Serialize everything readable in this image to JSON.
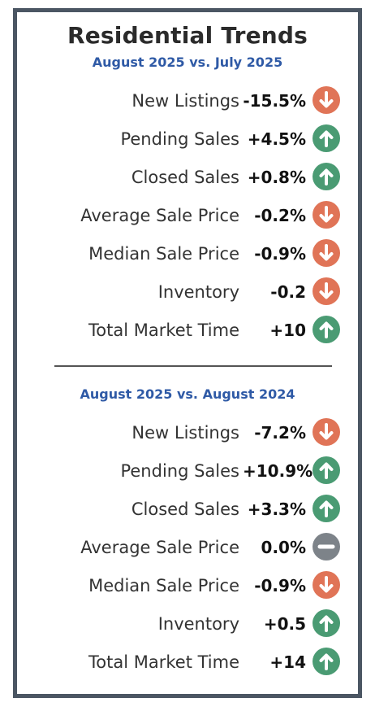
{
  "title": "Residential Trends",
  "sections": [
    {
      "subtitle": "August 2025 vs. July 2025",
      "rows": [
        {
          "label": "New Listings",
          "value": "-15.5%",
          "direction": "down"
        },
        {
          "label": "Pending Sales",
          "value": "+4.5%",
          "direction": "up"
        },
        {
          "label": "Closed Sales",
          "value": "+0.8%",
          "direction": "up"
        },
        {
          "label": "Average Sale Price",
          "value": "-0.2%",
          "direction": "down"
        },
        {
          "label": "Median Sale Price",
          "value": "-0.9%",
          "direction": "down"
        },
        {
          "label": "Inventory",
          "value": "-0.2",
          "direction": "down"
        },
        {
          "label": "Total Market Time",
          "value": "+10",
          "direction": "up"
        }
      ]
    },
    {
      "subtitle": "August 2025 vs. August 2024",
      "rows": [
        {
          "label": "New Listings",
          "value": "-7.2%",
          "direction": "down"
        },
        {
          "label": "Pending Sales",
          "value": "+10.9%",
          "direction": "up"
        },
        {
          "label": "Closed Sales",
          "value": "+3.3%",
          "direction": "up"
        },
        {
          "label": "Average Sale Price",
          "value": "0.0%",
          "direction": "flat"
        },
        {
          "label": "Median Sale Price",
          "value": "-0.9%",
          "direction": "down"
        },
        {
          "label": "Inventory",
          "value": "+0.5",
          "direction": "up"
        },
        {
          "label": "Total Market Time",
          "value": "+14",
          "direction": "up"
        }
      ]
    }
  ],
  "colors": {
    "down": "#e07457",
    "up": "#4a9b73",
    "flat": "#7d8389",
    "subtitle": "#2f5aa6",
    "border": "#4b5663"
  },
  "icons": {
    "down": "arrow-down-icon",
    "up": "arrow-up-icon",
    "flat": "minus-icon"
  }
}
